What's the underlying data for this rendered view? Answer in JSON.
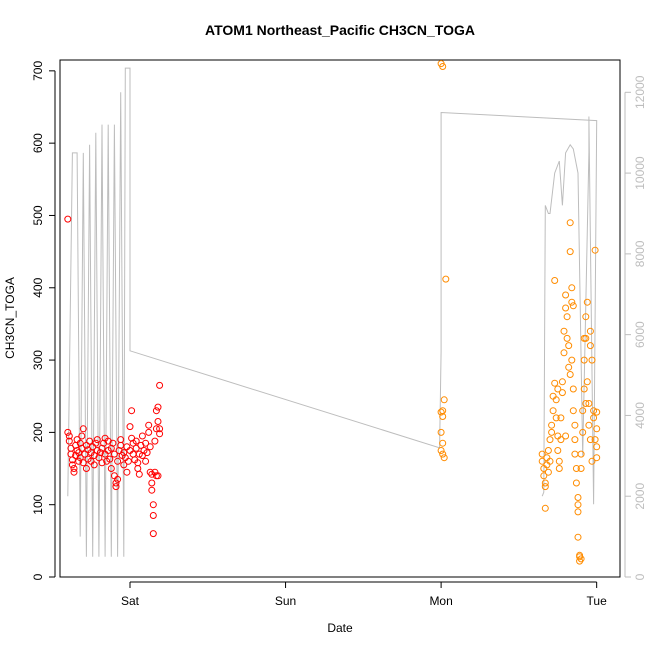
{
  "chart_data": {
    "type": "scatter",
    "title": "ATOM1 Northeast_Pacific CH3CN_TOGA",
    "xlabel": "Date",
    "ylabel": "CH3CN_TOGA",
    "x_ticks": [
      "Sat",
      "Sun",
      "Mon",
      "Tue"
    ],
    "y_ticks": [
      "0",
      "100",
      "200",
      "300",
      "400",
      "500",
      "600",
      "700"
    ],
    "y2_ticks": [
      "0",
      "2000",
      "4000",
      "6000",
      "8000",
      "10000",
      "12000"
    ],
    "x_axis": {
      "unit": "day",
      "tick_positions": [
        1,
        2,
        3,
        4
      ],
      "range": [
        0.55,
        4.15
      ]
    },
    "ylim": [
      0,
      715
    ],
    "y2lim": [
      0,
      12800
    ],
    "grid": false,
    "colors": {
      "series_1": "#ff0000",
      "series_2": "#ff8c00",
      "altitude": "#bdbdbd",
      "axis": "#000000",
      "right_axis": "#bdbdbd"
    },
    "series": [
      {
        "marker": "open-circle",
        "color": "#ff0000",
        "points": [
          [
            0.6,
            495
          ],
          [
            0.6,
            200
          ],
          [
            0.61,
            195
          ],
          [
            0.61,
            188
          ],
          [
            0.62,
            178
          ],
          [
            0.62,
            170
          ],
          [
            0.63,
            162
          ],
          [
            0.63,
            155
          ],
          [
            0.64,
            150
          ],
          [
            0.64,
            145
          ],
          [
            0.65,
            168
          ],
          [
            0.65,
            182
          ],
          [
            0.66,
            190
          ],
          [
            0.66,
            175
          ],
          [
            0.67,
            160
          ],
          [
            0.67,
            172
          ],
          [
            0.68,
            185
          ],
          [
            0.68,
            165
          ],
          [
            0.69,
            178
          ],
          [
            0.69,
            195
          ],
          [
            0.7,
            205
          ],
          [
            0.7,
            158
          ],
          [
            0.71,
            170
          ],
          [
            0.72,
            182
          ],
          [
            0.72,
            150
          ],
          [
            0.73,
            176
          ],
          [
            0.73,
            163
          ],
          [
            0.74,
            188
          ],
          [
            0.75,
            172
          ],
          [
            0.75,
            160
          ],
          [
            0.76,
            180
          ],
          [
            0.77,
            168
          ],
          [
            0.77,
            155
          ],
          [
            0.78,
            185
          ],
          [
            0.79,
            175
          ],
          [
            0.79,
            190
          ],
          [
            0.8,
            165
          ],
          [
            0.81,
            172
          ],
          [
            0.82,
            178
          ],
          [
            0.82,
            158
          ],
          [
            0.83,
            185
          ],
          [
            0.84,
            192
          ],
          [
            0.84,
            170
          ],
          [
            0.85,
            160
          ],
          [
            0.86,
            175
          ],
          [
            0.86,
            188
          ],
          [
            0.87,
            163
          ],
          [
            0.88,
            150
          ],
          [
            0.88,
            178
          ],
          [
            0.89,
            185
          ],
          [
            0.9,
            170
          ],
          [
            0.9,
            140
          ],
          [
            0.91,
            130
          ],
          [
            0.91,
            125
          ],
          [
            0.92,
            135
          ],
          [
            0.92,
            160
          ],
          [
            0.93,
            175
          ],
          [
            0.94,
            182
          ],
          [
            0.94,
            190
          ],
          [
            0.95,
            168
          ],
          [
            0.96,
            155
          ],
          [
            0.96,
            172
          ],
          [
            0.97,
            165
          ],
          [
            0.98,
            180
          ],
          [
            0.98,
            145
          ],
          [
            0.99,
            160
          ],
          [
            1.0,
            175
          ],
          [
            1.0,
            208
          ],
          [
            1.01,
            230
          ],
          [
            1.01,
            192
          ],
          [
            1.02,
            185
          ],
          [
            1.02,
            170
          ],
          [
            1.03,
            162
          ],
          [
            1.04,
            178
          ],
          [
            1.04,
            188
          ],
          [
            1.05,
            158
          ],
          [
            1.05,
            150
          ],
          [
            1.06,
            142
          ],
          [
            1.06,
            170
          ],
          [
            1.07,
            182
          ],
          [
            1.08,
            195
          ],
          [
            1.08,
            168
          ],
          [
            1.09,
            175
          ],
          [
            1.1,
            185
          ],
          [
            1.1,
            160
          ],
          [
            1.11,
            172
          ],
          [
            1.12,
            200
          ],
          [
            1.12,
            210
          ],
          [
            1.13,
            180
          ],
          [
            1.13,
            145
          ],
          [
            1.14,
            142
          ],
          [
            1.14,
            130
          ],
          [
            1.14,
            120
          ],
          [
            1.15,
            100
          ],
          [
            1.15,
            85
          ],
          [
            1.15,
            60
          ],
          [
            1.16,
            145
          ],
          [
            1.16,
            188
          ],
          [
            1.17,
            230
          ],
          [
            1.17,
            205
          ],
          [
            1.18,
            235
          ],
          [
            1.18,
            215
          ],
          [
            1.19,
            198
          ],
          [
            1.19,
            265
          ],
          [
            1.19,
            205
          ],
          [
            1.18,
            140
          ],
          [
            1.17,
            140
          ]
        ]
      },
      {
        "marker": "open-circle",
        "color": "#ff8c00",
        "points": [
          [
            3.0,
            710
          ],
          [
            3.01,
            706
          ],
          [
            3.03,
            412
          ],
          [
            3.02,
            245
          ],
          [
            3.01,
            230
          ],
          [
            3.0,
            228
          ],
          [
            3.01,
            222
          ],
          [
            3.0,
            200
          ],
          [
            3.01,
            185
          ],
          [
            3.0,
            175
          ],
          [
            3.01,
            170
          ],
          [
            3.02,
            165
          ],
          [
            3.65,
            170
          ],
          [
            3.65,
            160
          ],
          [
            3.66,
            150
          ],
          [
            3.66,
            140
          ],
          [
            3.67,
            130
          ],
          [
            3.67,
            125
          ],
          [
            3.67,
            95
          ],
          [
            3.68,
            155
          ],
          [
            3.68,
            165
          ],
          [
            3.69,
            175
          ],
          [
            3.69,
            145
          ],
          [
            3.7,
            160
          ],
          [
            3.7,
            190
          ],
          [
            3.71,
            200
          ],
          [
            3.71,
            210
          ],
          [
            3.72,
            230
          ],
          [
            3.72,
            250
          ],
          [
            3.73,
            268
          ],
          [
            3.73,
            410
          ],
          [
            3.74,
            245
          ],
          [
            3.74,
            220
          ],
          [
            3.75,
            195
          ],
          [
            3.75,
            175
          ],
          [
            3.76,
            160
          ],
          [
            3.76,
            150
          ],
          [
            3.77,
            190
          ],
          [
            3.77,
            220
          ],
          [
            3.78,
            255
          ],
          [
            3.78,
            270
          ],
          [
            3.79,
            310
          ],
          [
            3.79,
            340
          ],
          [
            3.8,
            372
          ],
          [
            3.8,
            390
          ],
          [
            3.81,
            360
          ],
          [
            3.81,
            330
          ],
          [
            3.82,
            320
          ],
          [
            3.82,
            290
          ],
          [
            3.83,
            280
          ],
          [
            3.83,
            450
          ],
          [
            3.83,
            490
          ],
          [
            3.84,
            400
          ],
          [
            3.84,
            380
          ],
          [
            3.84,
            300
          ],
          [
            3.85,
            260
          ],
          [
            3.85,
            230
          ],
          [
            3.86,
            210
          ],
          [
            3.86,
            190
          ],
          [
            3.86,
            170
          ],
          [
            3.87,
            150
          ],
          [
            3.87,
            130
          ],
          [
            3.88,
            110
          ],
          [
            3.88,
            100
          ],
          [
            3.88,
            90
          ],
          [
            3.88,
            55
          ],
          [
            3.89,
            30
          ],
          [
            3.89,
            28
          ],
          [
            3.9,
            25
          ],
          [
            3.89,
            22
          ],
          [
            3.9,
            150
          ],
          [
            3.9,
            170
          ],
          [
            3.91,
            200
          ],
          [
            3.91,
            230
          ],
          [
            3.92,
            260
          ],
          [
            3.92,
            300
          ],
          [
            3.93,
            330
          ],
          [
            3.93,
            360
          ],
          [
            3.94,
            380
          ],
          [
            3.94,
            270
          ],
          [
            3.95,
            240
          ],
          [
            3.95,
            210
          ],
          [
            3.96,
            190
          ],
          [
            3.97,
            160
          ],
          [
            3.98,
            230
          ],
          [
            3.98,
            220
          ],
          [
            3.99,
            190
          ],
          [
            3.99,
            452
          ],
          [
            4.0,
            228
          ],
          [
            4.0,
            205
          ],
          [
            4.0,
            180
          ],
          [
            4.0,
            165
          ],
          [
            3.96,
            340
          ],
          [
            3.96,
            320
          ],
          [
            3.97,
            300
          ],
          [
            3.92,
            330
          ],
          [
            3.93,
            240
          ],
          [
            3.85,
            375
          ],
          [
            3.8,
            195
          ],
          [
            3.75,
            260
          ]
        ]
      }
    ],
    "altitude_line": {
      "axis": "right",
      "points": [
        [
          0.6,
          2000
        ],
        [
          0.63,
          10500
        ],
        [
          0.66,
          10500
        ],
        [
          0.68,
          1000
        ],
        [
          0.7,
          10500
        ],
        [
          0.72,
          500
        ],
        [
          0.74,
          10700
        ],
        [
          0.76,
          500
        ],
        [
          0.78,
          11000
        ],
        [
          0.8,
          500
        ],
        [
          0.82,
          11200
        ],
        [
          0.84,
          500
        ],
        [
          0.86,
          11200
        ],
        [
          0.88,
          500
        ],
        [
          0.9,
          11200
        ],
        [
          0.92,
          500
        ],
        [
          0.94,
          12000
        ],
        [
          0.96,
          500
        ],
        [
          0.97,
          12600
        ],
        [
          1.0,
          12600
        ],
        [
          1.0,
          5600
        ],
        [
          2.99,
          3200
        ],
        [
          3.0,
          5600
        ],
        [
          3.0,
          11500
        ],
        [
          4.0,
          11300
        ],
        [
          3.98,
          1800
        ],
        [
          3.95,
          11400
        ],
        [
          3.95,
          10500
        ],
        [
          3.91,
          3000
        ],
        [
          3.88,
          10000
        ],
        [
          3.85,
          10600
        ],
        [
          3.83,
          10700
        ],
        [
          3.8,
          10500
        ],
        [
          3.78,
          9200
        ],
        [
          3.76,
          10300
        ],
        [
          3.73,
          10000
        ],
        [
          3.7,
          9000
        ],
        [
          3.69,
          9000
        ],
        [
          3.67,
          9200
        ],
        [
          3.66,
          2100
        ],
        [
          3.65,
          2000
        ]
      ]
    }
  }
}
